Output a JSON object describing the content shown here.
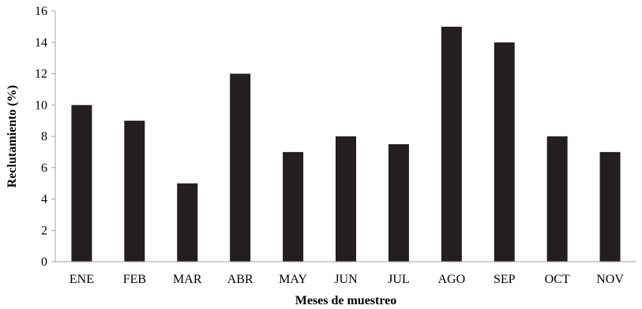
{
  "chart_data": {
    "type": "bar",
    "title": "",
    "xlabel": "Meses de muestreo",
    "ylabel": "Reclutamiento (%)",
    "categories": [
      "ENE",
      "FEB",
      "MAR",
      "ABR",
      "MAY",
      "JUN",
      "JUL",
      "AGO",
      "SEP",
      "OCT",
      "NOV"
    ],
    "values": [
      10,
      9,
      5,
      12,
      7,
      8,
      7.5,
      15,
      14,
      8,
      7
    ],
    "ylim": [
      0,
      16
    ],
    "yticks": [
      0,
      2,
      4,
      6,
      8,
      10,
      12,
      14,
      16
    ],
    "grid": false,
    "legend": "none",
    "colors": {
      "bar": "#231f20",
      "axis": "#a6a6a6"
    }
  }
}
